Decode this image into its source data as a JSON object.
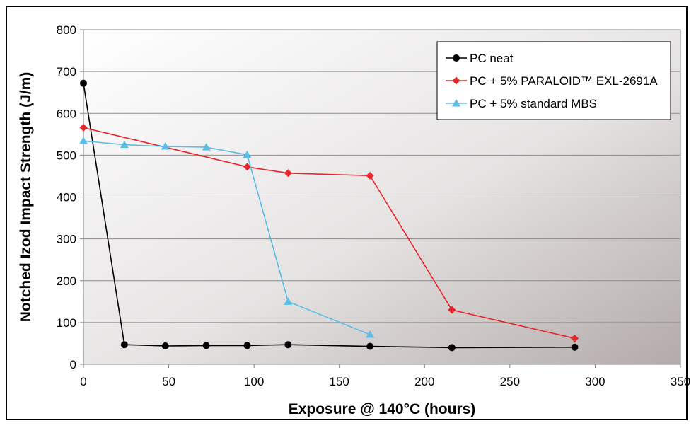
{
  "chart_data": {
    "type": "line",
    "xlabel": "Exposure @ 140°C (hours)",
    "ylabel": "Notched Izod Impact Strength (J/m)",
    "xlim": [
      0,
      350
    ],
    "ylim": [
      0,
      800
    ],
    "x_ticks": [
      0,
      50,
      100,
      150,
      200,
      250,
      300,
      350
    ],
    "y_ticks": [
      0,
      100,
      200,
      300,
      400,
      500,
      600,
      700,
      800
    ],
    "grid": "horizontal",
    "legend_position": "top-right",
    "series": [
      {
        "name": "PC neat",
        "color": "#000000",
        "marker": "circle",
        "points": [
          [
            0,
            672
          ],
          [
            24,
            47
          ],
          [
            48,
            44
          ],
          [
            72,
            45
          ],
          [
            96,
            45
          ],
          [
            120,
            47
          ],
          [
            168,
            43
          ],
          [
            216,
            40
          ],
          [
            288,
            41
          ]
        ]
      },
      {
        "name": "PC + 5% PARALOID™ EXL-2691A",
        "color": "#e8252a",
        "marker": "diamond",
        "points": [
          [
            0,
            566
          ],
          [
            96,
            472
          ],
          [
            120,
            457
          ],
          [
            168,
            451
          ],
          [
            216,
            130
          ],
          [
            288,
            62
          ]
        ]
      },
      {
        "name": "PC + 5% standard MBS",
        "color": "#5bbde6",
        "marker": "triangle",
        "points": [
          [
            0,
            534
          ],
          [
            24,
            525
          ],
          [
            48,
            521
          ],
          [
            72,
            519
          ],
          [
            96,
            501
          ],
          [
            120,
            150
          ],
          [
            168,
            71
          ]
        ]
      }
    ]
  }
}
